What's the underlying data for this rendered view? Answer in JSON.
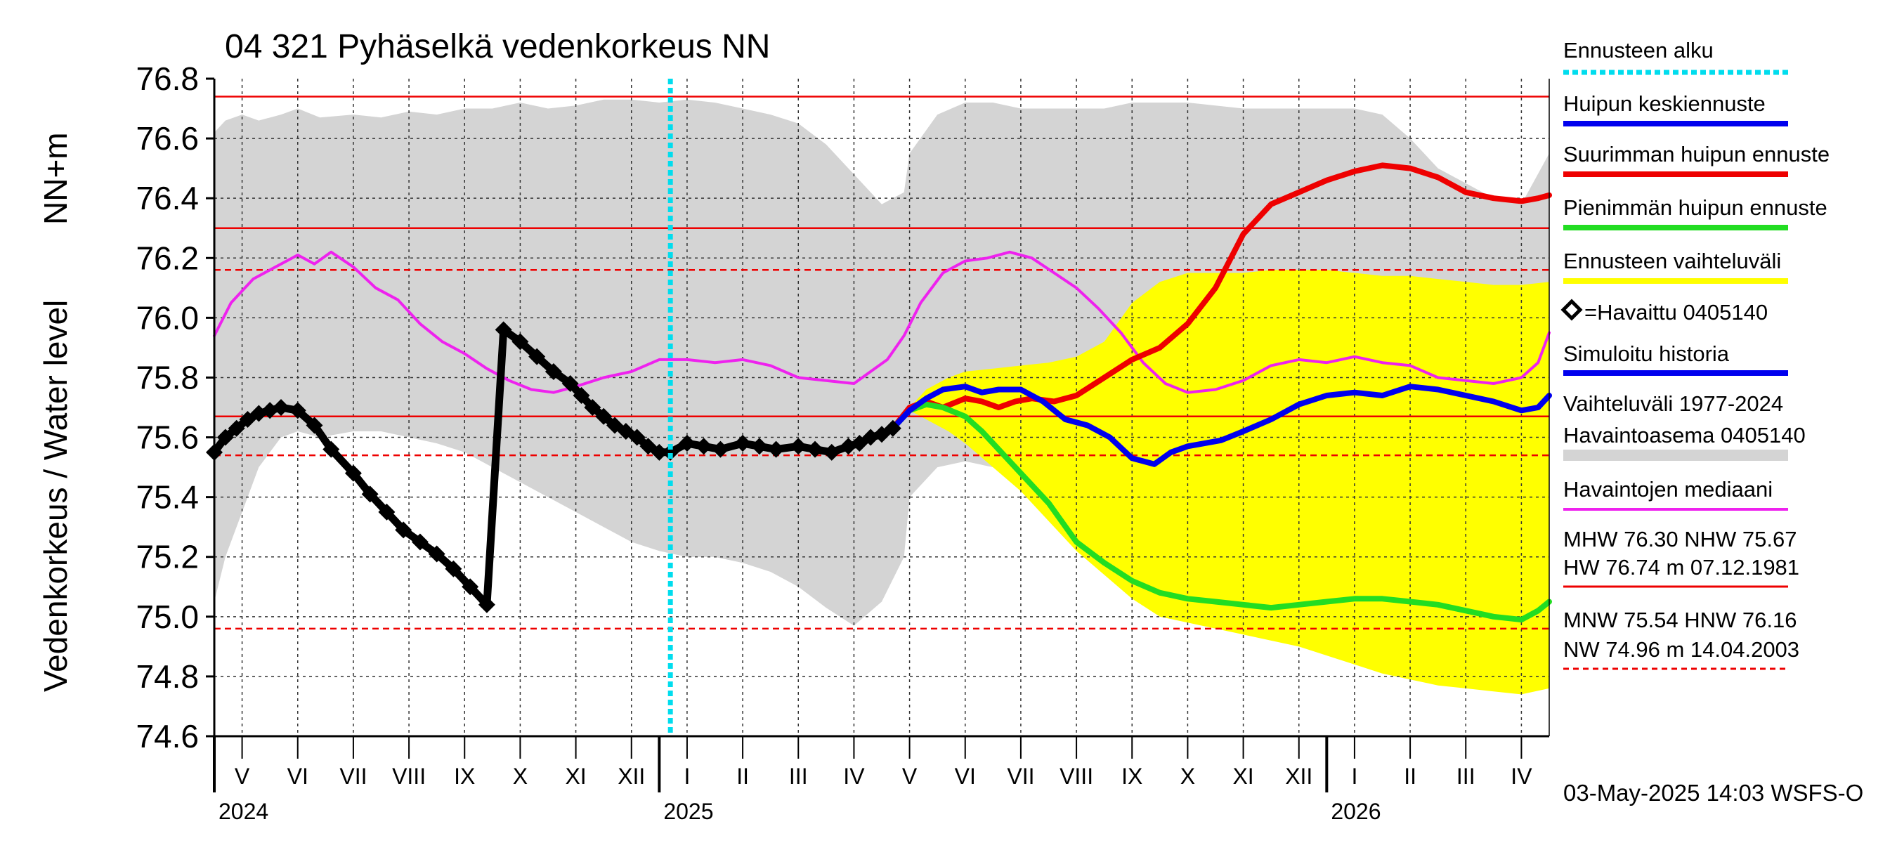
{
  "chart_data": {
    "type": "line",
    "title": "04 321 Pyhäselkä vedenkorkeus NN",
    "ylabel_left": "Vedenkorkeus / Water level",
    "ylabel_unit": "NN+m",
    "ylim": [
      74.6,
      76.8
    ],
    "y_ticks": [
      "76.8",
      "76.6",
      "76.4",
      "76.2",
      "76.0",
      "75.8",
      "75.6",
      "75.4",
      "75.2",
      "75.0",
      "74.8",
      "74.6"
    ],
    "x_start_month": 4.5,
    "x_end_month": 28.5,
    "forecast_start_month": 12.7,
    "months": [
      {
        "label": "V",
        "center": 5.0
      },
      {
        "label": "VI",
        "center": 6.0
      },
      {
        "label": "VII",
        "center": 7.0
      },
      {
        "label": "VIII",
        "center": 8.0
      },
      {
        "label": "IX",
        "center": 9.0
      },
      {
        "label": "X",
        "center": 10.0
      },
      {
        "label": "XI",
        "center": 11.0
      },
      {
        "label": "XII",
        "center": 12.0
      },
      {
        "label": "I",
        "center": 13.0
      },
      {
        "label": "II",
        "center": 14.0
      },
      {
        "label": "III",
        "center": 15.0
      },
      {
        "label": "IV",
        "center": 16.0
      },
      {
        "label": "V",
        "center": 17.0
      },
      {
        "label": "VI",
        "center": 18.0
      },
      {
        "label": "VII",
        "center": 19.0
      },
      {
        "label": "VIII",
        "center": 20.0
      },
      {
        "label": "IX",
        "center": 21.0
      },
      {
        "label": "X",
        "center": 22.0
      },
      {
        "label": "XI",
        "center": 23.0
      },
      {
        "label": "XII",
        "center": 24.0
      },
      {
        "label": "I",
        "center": 25.0
      },
      {
        "label": "II",
        "center": 26.0
      },
      {
        "label": "III",
        "center": 27.0
      },
      {
        "label": "IV",
        "center": 28.0
      }
    ],
    "years": [
      {
        "label": "2024",
        "month": 4.5
      },
      {
        "label": "2025",
        "month": 12.5
      },
      {
        "label": "2026",
        "month": 24.5
      }
    ],
    "reference_lines": [
      {
        "name": "HW",
        "value": 76.74,
        "style": "solid"
      },
      {
        "name": "MHW",
        "value": 76.3,
        "style": "solid"
      },
      {
        "name": "HNW",
        "value": 76.16,
        "style": "dashed"
      },
      {
        "name": "NHW",
        "value": 75.67,
        "style": "solid"
      },
      {
        "name": "MNW",
        "value": 75.54,
        "style": "dashed"
      },
      {
        "name": "NW",
        "value": 74.96,
        "style": "dashed"
      }
    ],
    "range_band": {
      "x": [
        4.5,
        4.7,
        5.0,
        5.3,
        5.7,
        6.0,
        6.4,
        7.0,
        7.5,
        8.0,
        8.5,
        9.0,
        9.5,
        10.0,
        10.5,
        11.0,
        11.5,
        12.0,
        12.5,
        13.0,
        13.5,
        14.0,
        14.5,
        15.0,
        15.5,
        16.0,
        16.5,
        16.9,
        17.0,
        17.5,
        18.0,
        18.5,
        19.0,
        19.5,
        20.0,
        20.5,
        21.0,
        21.5,
        22.0,
        22.5,
        23.0,
        23.5,
        24.0,
        24.5,
        25.0,
        25.5,
        26.0,
        26.5,
        27.0,
        27.5,
        28.0,
        28.5
      ],
      "high": [
        76.62,
        76.66,
        76.68,
        76.66,
        76.68,
        76.7,
        76.67,
        76.68,
        76.67,
        76.69,
        76.68,
        76.7,
        76.7,
        76.72,
        76.7,
        76.71,
        76.73,
        76.73,
        76.72,
        76.73,
        76.72,
        76.7,
        76.68,
        76.65,
        76.58,
        76.48,
        76.38,
        76.42,
        76.55,
        76.68,
        76.72,
        76.72,
        76.7,
        76.7,
        76.7,
        76.7,
        76.72,
        76.72,
        76.72,
        76.71,
        76.7,
        76.7,
        76.7,
        76.7,
        76.7,
        76.68,
        76.6,
        76.5,
        76.45,
        76.4,
        76.38,
        76.55
      ],
      "low": [
        75.05,
        75.2,
        75.35,
        75.5,
        75.6,
        75.62,
        75.6,
        75.62,
        75.62,
        75.6,
        75.58,
        75.55,
        75.5,
        75.45,
        75.4,
        75.35,
        75.3,
        75.25,
        75.22,
        75.2,
        75.2,
        75.18,
        75.15,
        75.1,
        75.03,
        74.97,
        75.05,
        75.2,
        75.4,
        75.5,
        75.52,
        75.5,
        75.45,
        75.35,
        75.25,
        75.18,
        75.12,
        75.08,
        75.06,
        75.05,
        75.04,
        75.04,
        75.04,
        75.04,
        75.03,
        75.02,
        75.01,
        75.0,
        74.99,
        74.97,
        74.96,
        74.98
      ]
    },
    "forecast_band": {
      "x": [
        16.7,
        17.0,
        17.3,
        17.7,
        18.0,
        18.5,
        19.0,
        19.5,
        20.0,
        20.5,
        21.0,
        21.5,
        22.0,
        22.5,
        23.0,
        23.5,
        24.0,
        24.5,
        25.0,
        25.5,
        26.0,
        26.5,
        27.0,
        27.5,
        28.0,
        28.5
      ],
      "high": [
        75.63,
        75.7,
        75.76,
        75.8,
        75.82,
        75.83,
        75.84,
        75.85,
        75.87,
        75.92,
        76.05,
        76.12,
        76.15,
        76.15,
        76.15,
        76.16,
        76.16,
        76.16,
        76.15,
        76.14,
        76.14,
        76.13,
        76.12,
        76.11,
        76.11,
        76.12
      ],
      "low": [
        75.63,
        75.69,
        75.66,
        75.62,
        75.58,
        75.5,
        75.42,
        75.32,
        75.22,
        75.14,
        75.06,
        75.0,
        74.98,
        74.96,
        74.94,
        74.92,
        74.9,
        74.87,
        74.84,
        74.81,
        74.79,
        74.77,
        74.76,
        74.75,
        74.74,
        74.76
      ]
    },
    "series": [
      {
        "name": "Havaintojen mediaani",
        "color": "#ee22ee",
        "width": 4,
        "x": [
          4.5,
          4.8,
          5.2,
          5.6,
          6.0,
          6.3,
          6.6,
          7.0,
          7.4,
          7.8,
          8.2,
          8.6,
          9.0,
          9.4,
          9.8,
          10.2,
          10.6,
          11.0,
          11.5,
          12.0,
          12.5,
          13.0,
          13.5,
          14.0,
          14.5,
          15.0,
          15.5,
          16.0,
          16.3,
          16.6,
          16.9,
          17.2,
          17.6,
          18.0,
          18.4,
          18.8,
          19.2,
          19.6,
          20.0,
          20.4,
          20.8,
          21.2,
          21.6,
          22.0,
          22.5,
          23.0,
          23.5,
          24.0,
          24.5,
          25.0,
          25.5,
          26.0,
          26.5,
          27.0,
          27.5,
          28.0,
          28.3,
          28.5
        ],
        "y": [
          75.94,
          76.05,
          76.13,
          76.17,
          76.21,
          76.18,
          76.22,
          76.17,
          76.1,
          76.06,
          75.98,
          75.92,
          75.88,
          75.83,
          75.79,
          75.76,
          75.75,
          75.77,
          75.8,
          75.82,
          75.86,
          75.86,
          75.85,
          75.86,
          75.84,
          75.8,
          75.79,
          75.78,
          75.82,
          75.86,
          75.94,
          76.05,
          76.15,
          76.19,
          76.2,
          76.22,
          76.2,
          76.15,
          76.1,
          76.03,
          75.95,
          75.85,
          75.78,
          75.75,
          75.76,
          75.79,
          75.84,
          75.86,
          75.85,
          75.87,
          75.85,
          75.84,
          75.8,
          75.79,
          75.78,
          75.8,
          75.85,
          75.95
        ]
      },
      {
        "name": "Suurimman huipun ennuste",
        "color": "#ee0000",
        "width": 8,
        "x": [
          16.7,
          17.0,
          17.3,
          17.6,
          18.0,
          18.3,
          18.6,
          18.9,
          19.2,
          19.6,
          20.0,
          20.5,
          21.0,
          21.5,
          22.0,
          22.5,
          23.0,
          23.5,
          24.0,
          24.5,
          25.0,
          25.5,
          26.0,
          26.5,
          27.0,
          27.5,
          28.0,
          28.3,
          28.5
        ],
        "y": [
          75.63,
          75.7,
          75.72,
          75.7,
          75.73,
          75.72,
          75.7,
          75.72,
          75.73,
          75.72,
          75.74,
          75.8,
          75.86,
          75.9,
          75.98,
          76.1,
          76.28,
          76.38,
          76.42,
          76.46,
          76.49,
          76.51,
          76.5,
          76.47,
          76.42,
          76.4,
          76.39,
          76.4,
          76.41
        ]
      },
      {
        "name": "Pienimmän huipun ennuste",
        "color": "#22dd22",
        "width": 8,
        "x": [
          16.7,
          17.0,
          17.3,
          17.6,
          18.0,
          18.3,
          18.6,
          19.0,
          19.5,
          20.0,
          20.5,
          21.0,
          21.5,
          22.0,
          22.5,
          23.0,
          23.5,
          24.0,
          24.5,
          25.0,
          25.5,
          26.0,
          26.5,
          27.0,
          27.5,
          28.0,
          28.3,
          28.5
        ],
        "y": [
          75.63,
          75.69,
          75.71,
          75.7,
          75.67,
          75.62,
          75.56,
          75.48,
          75.38,
          75.25,
          75.18,
          75.12,
          75.08,
          75.06,
          75.05,
          75.04,
          75.03,
          75.04,
          75.05,
          75.06,
          75.06,
          75.05,
          75.04,
          75.02,
          75.0,
          74.99,
          75.02,
          75.05
        ]
      },
      {
        "name": "Huipun keskiennuste",
        "color": "#0000ee",
        "width": 8,
        "x": [
          16.7,
          17.0,
          17.3,
          17.6,
          18.0,
          18.3,
          18.6,
          19.0,
          19.4,
          19.8,
          20.2,
          20.6,
          21.0,
          21.4,
          21.7,
          22.0,
          22.3,
          22.6,
          23.0,
          23.5,
          24.0,
          24.5,
          25.0,
          25.5,
          26.0,
          26.5,
          27.0,
          27.5,
          28.0,
          28.3,
          28.5
        ],
        "y": [
          75.63,
          75.69,
          75.73,
          75.76,
          75.77,
          75.75,
          75.76,
          75.76,
          75.72,
          75.66,
          75.64,
          75.6,
          75.53,
          75.51,
          75.55,
          75.57,
          75.58,
          75.59,
          75.62,
          75.66,
          75.71,
          75.74,
          75.75,
          75.74,
          75.77,
          75.76,
          75.74,
          75.72,
          75.69,
          75.7,
          75.74
        ]
      },
      {
        "name": "Havaittu 0405140",
        "color": "#000000",
        "width": 11,
        "x": [
          4.5,
          4.7,
          4.9,
          5.1,
          5.3,
          5.5,
          5.7,
          6.0,
          6.3,
          6.6,
          7.0,
          7.3,
          7.6,
          7.9,
          8.2,
          8.5,
          8.8,
          9.1,
          9.4,
          9.7,
          10.0,
          10.3,
          10.6,
          10.9,
          11.1,
          11.3,
          11.5,
          11.7,
          11.9,
          12.1,
          12.3,
          12.5,
          12.7,
          13.0,
          13.3,
          13.6,
          14.0,
          14.3,
          14.6,
          15.0,
          15.3,
          15.6,
          15.9,
          16.1,
          16.3,
          16.5,
          16.7
        ],
        "y": [
          75.55,
          75.6,
          75.63,
          75.66,
          75.68,
          75.69,
          75.7,
          75.69,
          75.64,
          75.56,
          75.48,
          75.41,
          75.35,
          75.29,
          75.25,
          75.21,
          75.16,
          75.1,
          75.04,
          75.96,
          75.92,
          75.87,
          75.82,
          75.78,
          75.74,
          75.7,
          75.67,
          75.64,
          75.62,
          75.6,
          75.57,
          75.55,
          75.55,
          75.58,
          75.57,
          75.56,
          75.58,
          75.57,
          75.56,
          75.57,
          75.56,
          75.55,
          75.57,
          75.58,
          75.6,
          75.61,
          75.63
        ]
      }
    ],
    "legend": [
      {
        "label": "Ennusteen alku",
        "color": "#00ddee",
        "style": "dotted"
      },
      {
        "label": "Huipun keskiennuste",
        "color": "#0000ee",
        "style": "solid"
      },
      {
        "label": "Suurimman huipun ennuste",
        "color": "#ee0000",
        "style": "solid"
      },
      {
        "label": "Pienimmän huipun ennuste",
        "color": "#22dd22",
        "style": "solid"
      },
      {
        "label": "Ennusteen vaihteluväli",
        "color": "#ffff00",
        "style": "solid"
      },
      {
        "label": "=Havaittu 0405140",
        "color": "#000000",
        "style": "marker"
      },
      {
        "label": "Simuloitu historia",
        "color": "#0000ee",
        "style": "solid"
      },
      {
        "label": "Vaihteluväli 1977-2024",
        "color": "#d4d4d4",
        "style": "none"
      },
      {
        "label": " Havaintoasema 0405140",
        "color": "#d4d4d4",
        "style": "solid"
      },
      {
        "label": "Havaintojen mediaani",
        "color": "#ee22ee",
        "style": "solid"
      }
    ],
    "stats": {
      "line1": "MHW  76.30 NHW  75.67",
      "line2": "HW  76.74 m 07.12.1981",
      "line3": "MNW  75.54 HNW  76.16",
      "line4": "NW  74.96 m 14.04.2003"
    },
    "footer": "03-May-2025 14:03 WSFS-O"
  }
}
